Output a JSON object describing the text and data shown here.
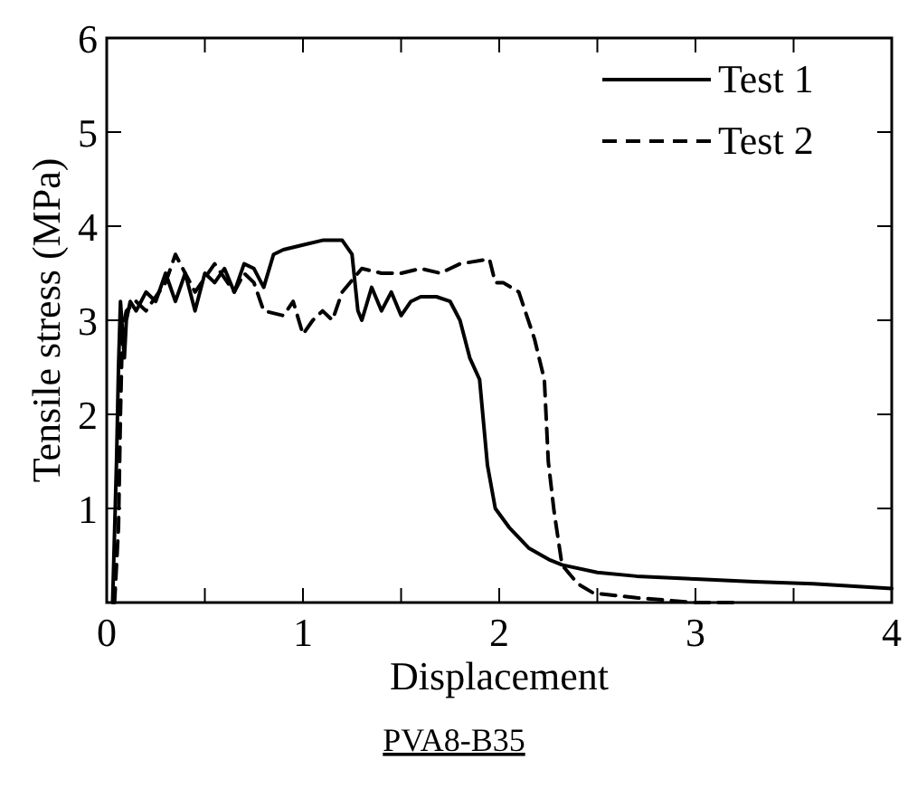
{
  "chart_data": {
    "type": "line",
    "xlabel": "Displacement",
    "ylabel": "Tensile stress (MPa)",
    "annotations": [
      "PVA8-B35"
    ],
    "xlim": [
      0,
      4
    ],
    "ylim": [
      0,
      6
    ],
    "xticks": [
      0,
      {
        "value": 0.5,
        "label": null
      },
      1,
      {
        "value": 1.5,
        "label": null
      },
      2,
      {
        "value": 2.5,
        "label": null
      },
      3,
      {
        "value": 3.5,
        "label": null
      },
      4
    ],
    "yticks": [
      {
        "value": 0,
        "label": null
      },
      1,
      2,
      3,
      4,
      5,
      6
    ],
    "legend": "top right",
    "grid": false,
    "series": [
      {
        "name": "Test 1",
        "color": "#000000",
        "line_style": "solid",
        "x": [
          0.03,
          0.05,
          0.06,
          0.07,
          0.09,
          0.1,
          0.12,
          0.15,
          0.2,
          0.25,
          0.3,
          0.35,
          0.4,
          0.45,
          0.5,
          0.55,
          0.6,
          0.65,
          0.7,
          0.75,
          0.8,
          0.85,
          0.9,
          1.0,
          1.1,
          1.2,
          1.25,
          1.28,
          1.3,
          1.35,
          1.4,
          1.45,
          1.5,
          1.55,
          1.6,
          1.68,
          1.75,
          1.8,
          1.85,
          1.9,
          1.94,
          1.98,
          2.05,
          2.15,
          2.26,
          2.32,
          2.5,
          2.7,
          3.0,
          3.3,
          3.6,
          4.0
        ],
        "values": [
          0,
          1.5,
          2.5,
          3.2,
          2.6,
          3.0,
          3.2,
          3.1,
          3.3,
          3.2,
          3.5,
          3.2,
          3.5,
          3.1,
          3.5,
          3.4,
          3.55,
          3.3,
          3.6,
          3.55,
          3.35,
          3.7,
          3.75,
          3.8,
          3.85,
          3.85,
          3.7,
          3.1,
          3.0,
          3.35,
          3.1,
          3.3,
          3.05,
          3.2,
          3.25,
          3.25,
          3.2,
          3.0,
          2.6,
          2.37,
          1.46,
          1.0,
          0.8,
          0.58,
          0.45,
          0.4,
          0.32,
          0.28,
          0.25,
          0.22,
          0.2,
          0.15
        ]
      },
      {
        "name": "Test 2",
        "color": "#000000",
        "line_style": "dashed",
        "x": [
          0.04,
          0.06,
          0.07,
          0.08,
          0.1,
          0.15,
          0.2,
          0.3,
          0.35,
          0.45,
          0.55,
          0.65,
          0.7,
          0.75,
          0.8,
          0.9,
          0.95,
          1.0,
          1.05,
          1.1,
          1.15,
          1.2,
          1.3,
          1.4,
          1.5,
          1.6,
          1.7,
          1.8,
          1.95,
          1.98,
          2.02,
          2.1,
          2.18,
          2.23,
          2.25,
          2.28,
          2.32,
          2.4,
          2.48,
          2.7,
          3.0,
          3.2
        ],
        "values": [
          0,
          0.8,
          2.0,
          2.9,
          3.1,
          3.2,
          3.1,
          3.4,
          3.7,
          3.3,
          3.6,
          3.3,
          3.5,
          3.4,
          3.1,
          3.05,
          3.2,
          2.85,
          3.0,
          3.1,
          3.0,
          3.3,
          3.55,
          3.5,
          3.5,
          3.55,
          3.5,
          3.6,
          3.65,
          3.4,
          3.4,
          3.3,
          2.8,
          2.37,
          1.5,
          0.96,
          0.4,
          0.2,
          0.1,
          0.05,
          0.0,
          0.0
        ]
      }
    ]
  }
}
